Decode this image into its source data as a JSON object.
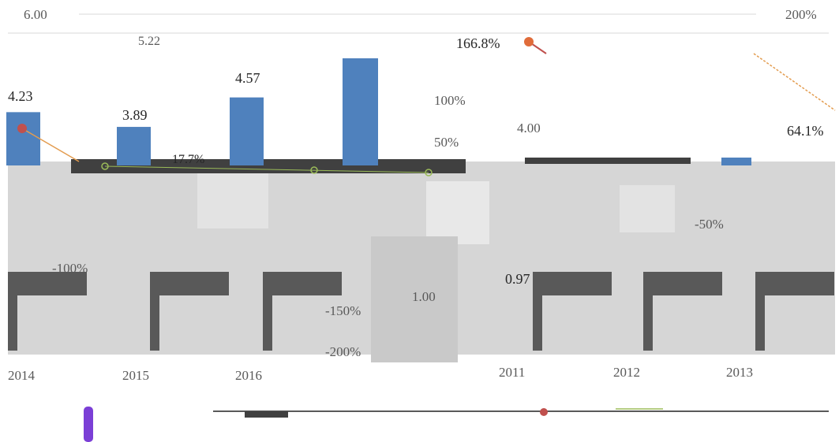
{
  "chart_data": {
    "type": "bar",
    "categories": [
      "2014",
      "2015",
      "2016",
      "2011",
      "2012",
      "2013"
    ],
    "series": [
      {
        "type": "bar",
        "color": "#4f81bd",
        "values": [
          4.23,
          3.89,
          4.57,
          null,
          null,
          null
        ]
      },
      {
        "type": "line",
        "color": "#c0504d",
        "values": [
          null,
          null,
          null,
          166.8,
          null,
          64.1
        ]
      },
      {
        "type": "line",
        "color": "#9bbb59",
        "values": [
          null,
          null,
          null,
          null,
          null,
          null
        ]
      }
    ],
    "left_axis": {
      "ticks": [
        "6.00",
        "4.00",
        "1.00"
      ],
      "ylim": [
        0,
        6
      ]
    },
    "right_axis": {
      "ticks": [
        "200%",
        "100%",
        "50%",
        "-50%",
        "-100%",
        "-150%",
        "-200%"
      ],
      "ylim": [
        -200,
        200
      ]
    },
    "data_labels": [
      {
        "text": "4.23"
      },
      {
        "text": "3.89"
      },
      {
        "text": "4.57"
      },
      {
        "text": "5.22"
      },
      {
        "text": "166.8%"
      },
      {
        "text": "64.1%"
      },
      {
        "text": "0.97"
      },
      {
        "text": "17.7%"
      }
    ],
    "grid": true,
    "legend_position": "bottom"
  },
  "colors": {
    "bar_primary": "#4f81bd",
    "line_primary": "#c0504d",
    "line_secondary": "#9bbb59",
    "legend_purple": "#7b3fd6",
    "grid": "#d9d9d9",
    "band_dark": "#595959",
    "band_light": "#bfbfbf"
  }
}
